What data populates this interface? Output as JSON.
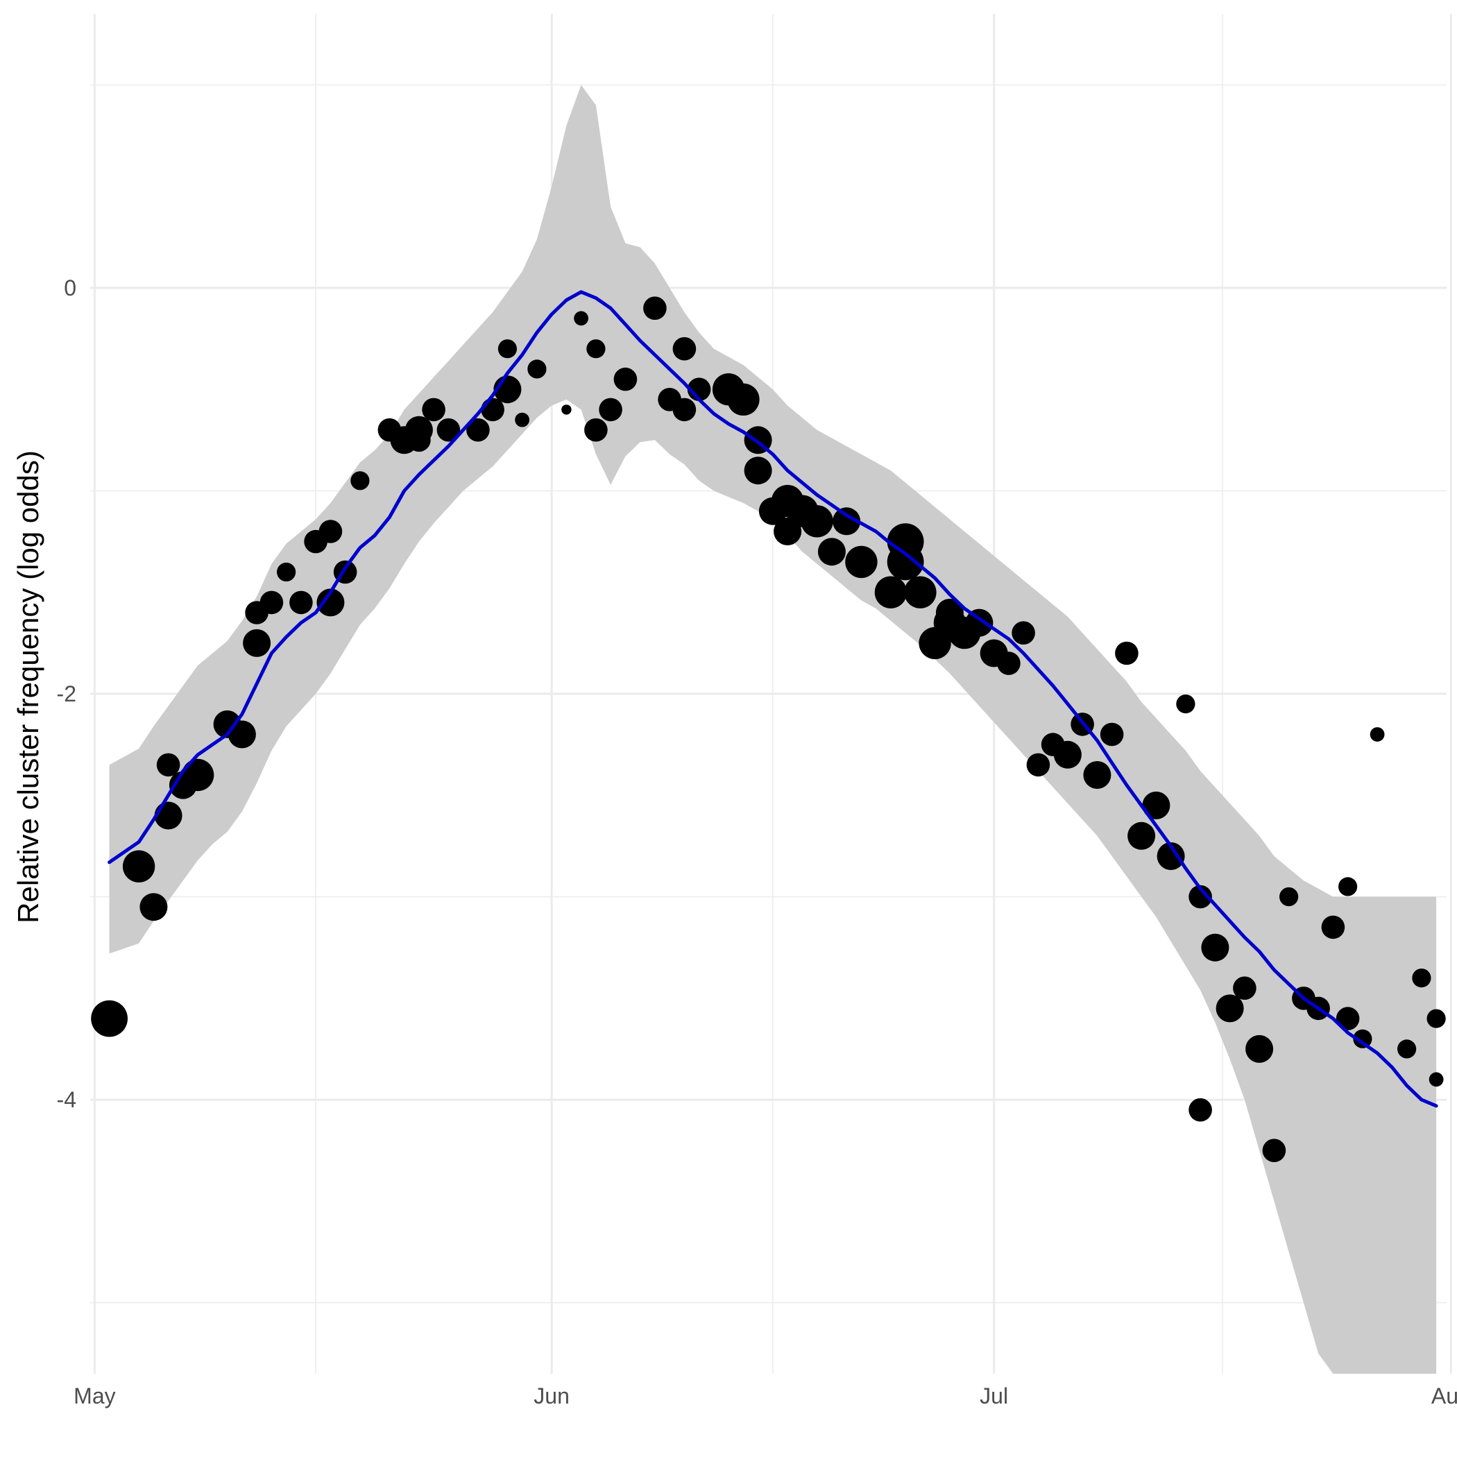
{
  "chart_data": {
    "type": "scatter",
    "title": "",
    "xlabel": "",
    "ylabel": "Relative cluster frequency (log odds)",
    "x_ticks": [
      "May",
      "Jun",
      "Jul",
      "Aug"
    ],
    "y_ticks": [
      "0",
      "-2",
      "-4"
    ],
    "x_unit": "days since May 1",
    "xlim": [
      -0.3,
      91.7
    ],
    "ylim": [
      -5.35,
      1.35
    ],
    "grid": true,
    "colors": {
      "points": "#000000",
      "fit_line": "#0000CD",
      "ribbon": "#cccccc",
      "grid": "#ebebeb"
    },
    "series": [
      {
        "kind": "points",
        "x": [
          1.0,
          3.0,
          4.0,
          5.0,
          5.0,
          6.0,
          7.0,
          9.0,
          10.0,
          11.0,
          11.0,
          12.0,
          13.0,
          14.0,
          15.0,
          16.0,
          16.0,
          17.0,
          18.0,
          20.0,
          21.0,
          22.0,
          22.0,
          23.0,
          24.0,
          26.0,
          27.0,
          28.0,
          28.0,
          29.0,
          30.0,
          32.0,
          33.0,
          34.0,
          34.0,
          35.0,
          36.0,
          38.0,
          39.0,
          40.0,
          40.0,
          41.0,
          43.0,
          44.0,
          45.0,
          45.0,
          46.0,
          47.0,
          47.0,
          48.0,
          49.0,
          50.0,
          51.0,
          52.0,
          54.0,
          55.0,
          55.0,
          56.0,
          57.0,
          58.0,
          58.0,
          59.0,
          60.0,
          61.0,
          62.0,
          63.0,
          64.0,
          65.0,
          66.0,
          67.0,
          68.0,
          69.0,
          70.0,
          71.0,
          72.0,
          73.0,
          74.0,
          75.0,
          75.0,
          76.0,
          77.0,
          78.0,
          79.0,
          80.0,
          81.0,
          82.0,
          83.0,
          84.0,
          85.0,
          85.0,
          86.0,
          87.0,
          89.0,
          90.0,
          91.0,
          91.0
        ],
        "y": [
          -3.6,
          -2.85,
          -3.05,
          -2.35,
          -2.6,
          -2.45,
          -2.4,
          -2.15,
          -2.2,
          -1.75,
          -1.6,
          -1.55,
          -1.4,
          -1.55,
          -1.25,
          -1.2,
          -1.55,
          -1.4,
          -0.95,
          -0.7,
          -0.75,
          -0.7,
          -0.75,
          -0.6,
          -0.7,
          -0.7,
          -0.6,
          -0.5,
          -0.3,
          -0.65,
          -0.4,
          -0.6,
          -0.15,
          -0.3,
          -0.7,
          -0.6,
          -0.45,
          -0.1,
          -0.55,
          -0.6,
          -0.3,
          -0.5,
          -0.5,
          -0.55,
          -0.75,
          -0.9,
          -1.1,
          -1.2,
          -1.05,
          -1.1,
          -1.15,
          -1.3,
          -1.15,
          -1.35,
          -1.5,
          -1.35,
          -1.25,
          -1.5,
          -1.75,
          -1.65,
          -1.6,
          -1.7,
          -1.65,
          -1.8,
          -1.85,
          -1.7,
          -2.35,
          -2.25,
          -2.3,
          -2.15,
          -2.4,
          -2.2,
          -1.8,
          -2.7,
          -2.55,
          -2.8,
          -2.05,
          -4.05,
          -3.0,
          -3.25,
          -3.55,
          -3.45,
          -3.75,
          -4.25,
          -3.0,
          -3.5,
          -3.55,
          -3.15,
          -3.6,
          -2.95,
          -3.7,
          -2.2,
          -3.75,
          -3.4,
          -3.6,
          -3.9
        ],
        "sizes": [
          7,
          6,
          5,
          4,
          5,
          5,
          6,
          5,
          5,
          5,
          4,
          4,
          3,
          4,
          4,
          4,
          5,
          4,
          3,
          4,
          5,
          5,
          4,
          4,
          4,
          4,
          4,
          5,
          3,
          2,
          3,
          1,
          2,
          3,
          4,
          4,
          4,
          4,
          4,
          4,
          4,
          4,
          6,
          6,
          5,
          5,
          5,
          5,
          6,
          6,
          6,
          5,
          5,
          6,
          6,
          7,
          7,
          6,
          6,
          6,
          5,
          6,
          5,
          5,
          4,
          4,
          4,
          4,
          5,
          4,
          5,
          4,
          4,
          5,
          5,
          5,
          3,
          4,
          4,
          5,
          5,
          4,
          5,
          4,
          3,
          4,
          4,
          4,
          4,
          3,
          3,
          2,
          3,
          3,
          3,
          2
        ]
      },
      {
        "kind": "fit",
        "name": "",
        "x": [
          1,
          3,
          4,
          5,
          6,
          7,
          8,
          9,
          10,
          11,
          12,
          13,
          14,
          15,
          16,
          17,
          18,
          19,
          20,
          21,
          22,
          23,
          24,
          25,
          26,
          27,
          28,
          29,
          30,
          31,
          32,
          33,
          34,
          35,
          36,
          37,
          38,
          39,
          40,
          41,
          42,
          43,
          44,
          45,
          46,
          47,
          48,
          49,
          50,
          51,
          52,
          53,
          54,
          55,
          56,
          57,
          58,
          59,
          60,
          61,
          62,
          63,
          64,
          65,
          66,
          67,
          68,
          69,
          70,
          71,
          72,
          73,
          74,
          75,
          76,
          77,
          78,
          79,
          80,
          81,
          82,
          83,
          84,
          85,
          86,
          87,
          88,
          89,
          90,
          91
        ],
        "y": [
          -2.83,
          -2.73,
          -2.62,
          -2.5,
          -2.38,
          -2.3,
          -2.25,
          -2.2,
          -2.1,
          -1.95,
          -1.8,
          -1.72,
          -1.65,
          -1.6,
          -1.5,
          -1.38,
          -1.28,
          -1.22,
          -1.13,
          -1.0,
          -0.92,
          -0.85,
          -0.78,
          -0.7,
          -0.62,
          -0.53,
          -0.42,
          -0.33,
          -0.22,
          -0.13,
          -0.06,
          -0.02,
          -0.05,
          -0.1,
          -0.18,
          -0.26,
          -0.33,
          -0.4,
          -0.47,
          -0.55,
          -0.62,
          -0.67,
          -0.71,
          -0.76,
          -0.82,
          -0.9,
          -0.96,
          -1.02,
          -1.07,
          -1.12,
          -1.16,
          -1.2,
          -1.26,
          -1.31,
          -1.37,
          -1.43,
          -1.51,
          -1.58,
          -1.63,
          -1.68,
          -1.73,
          -1.8,
          -1.88,
          -1.96,
          -2.05,
          -2.14,
          -2.23,
          -2.34,
          -2.45,
          -2.55,
          -2.65,
          -2.75,
          -2.86,
          -2.96,
          -3.04,
          -3.12,
          -3.2,
          -3.27,
          -3.36,
          -3.43,
          -3.5,
          -3.55,
          -3.6,
          -3.67,
          -3.72,
          -3.77,
          -3.84,
          -3.93,
          -4.0,
          -4.03
        ],
        "lower": [
          -3.28,
          -3.23,
          -3.12,
          -3.02,
          -2.92,
          -2.82,
          -2.74,
          -2.68,
          -2.58,
          -2.44,
          -2.28,
          -2.16,
          -2.08,
          -2.0,
          -1.9,
          -1.78,
          -1.66,
          -1.58,
          -1.48,
          -1.36,
          -1.25,
          -1.16,
          -1.08,
          -1.0,
          -0.94,
          -0.88,
          -0.8,
          -0.72,
          -0.64,
          -0.58,
          -0.55,
          -0.6,
          -0.82,
          -0.97,
          -0.83,
          -0.76,
          -0.75,
          -0.82,
          -0.87,
          -0.95,
          -1.0,
          -1.03,
          -1.06,
          -1.1,
          -1.16,
          -1.22,
          -1.3,
          -1.36,
          -1.42,
          -1.48,
          -1.54,
          -1.58,
          -1.64,
          -1.7,
          -1.76,
          -1.83,
          -1.9,
          -1.98,
          -2.06,
          -2.14,
          -2.22,
          -2.3,
          -2.38,
          -2.46,
          -2.54,
          -2.62,
          -2.7,
          -2.8,
          -2.9,
          -3.0,
          -3.1,
          -3.22,
          -3.34,
          -3.46,
          -3.62,
          -3.8,
          -4.0,
          -4.25,
          -4.5,
          -4.75,
          -5.0,
          -5.25,
          -5.35,
          -5.35,
          -5.35,
          -5.35,
          -5.35,
          -5.35,
          -5.35,
          -5.35
        ],
        "upper": [
          -2.35,
          -2.27,
          -2.16,
          -2.06,
          -1.96,
          -1.86,
          -1.8,
          -1.74,
          -1.64,
          -1.52,
          -1.36,
          -1.26,
          -1.2,
          -1.14,
          -1.06,
          -0.96,
          -0.86,
          -0.8,
          -0.72,
          -0.6,
          -0.52,
          -0.44,
          -0.36,
          -0.28,
          -0.2,
          -0.12,
          -0.02,
          0.08,
          0.24,
          0.5,
          0.8,
          1.0,
          0.9,
          0.4,
          0.22,
          0.2,
          0.12,
          0.0,
          -0.12,
          -0.22,
          -0.3,
          -0.34,
          -0.38,
          -0.44,
          -0.5,
          -0.58,
          -0.64,
          -0.7,
          -0.74,
          -0.78,
          -0.82,
          -0.86,
          -0.9,
          -0.96,
          -1.02,
          -1.08,
          -1.14,
          -1.2,
          -1.26,
          -1.32,
          -1.38,
          -1.44,
          -1.5,
          -1.56,
          -1.62,
          -1.7,
          -1.78,
          -1.86,
          -1.94,
          -2.04,
          -2.12,
          -2.2,
          -2.28,
          -2.38,
          -2.46,
          -2.54,
          -2.62,
          -2.7,
          -2.8,
          -2.86,
          -2.92,
          -2.96,
          -3.0,
          -3.0,
          -3.0,
          -3.0,
          -3.0,
          -3.0,
          -3.0,
          -3.0
        ]
      }
    ]
  }
}
